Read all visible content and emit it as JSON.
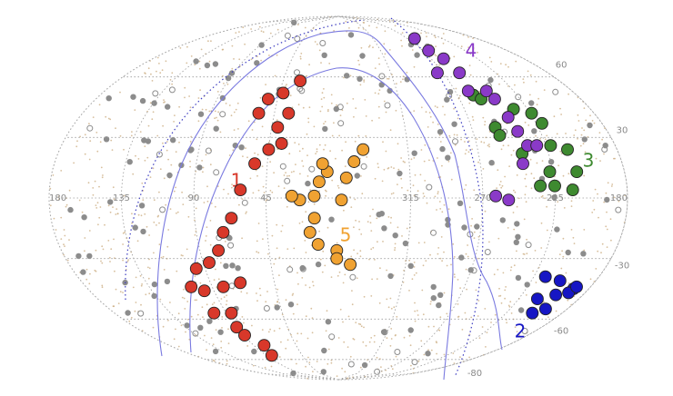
{
  "chart_data": {
    "type": "scatter",
    "lon_ticks": [
      180,
      135,
      90,
      45,
      315,
      270,
      225,
      180
    ],
    "lat_ticks": [
      60,
      30,
      -30,
      -60,
      -80
    ],
    "series": [
      {
        "name": "1",
        "color": "#d8382a",
        "lon": [
          31,
          42,
          52,
          56,
          35,
          41,
          37,
          45,
          53,
          61,
          67,
          73,
          78,
          86,
          96,
          105,
          97,
          82,
          69,
          100,
          86,
          90,
          89,
          79,
          83
        ],
        "lat": [
          58,
          52,
          49,
          42,
          42,
          35,
          27,
          24,
          17,
          4,
          -10,
          -17,
          -26,
          -32,
          -35,
          -44,
          -46,
          -44,
          -42,
          -57,
          -57,
          -64,
          -68,
          -73,
          -78
        ]
      },
      {
        "name": "2",
        "color": "#1616c4",
        "lon": [
          217,
          205,
          191,
          200,
          211,
          197,
          204,
          192,
          190
        ],
        "lat": [
          -39,
          -41,
          -45,
          -48,
          -50,
          -55,
          -57,
          -47,
          -44
        ]
      },
      {
        "name": "3",
        "color": "#3e8a30",
        "lon": [
          258,
          254,
          235,
          224,
          221,
          254,
          253,
          222,
          212,
          242,
          227,
          210,
          225,
          214,
          234
        ],
        "lat": [
          51,
          49,
          44,
          42,
          37,
          35,
          31,
          26,
          24,
          22,
          13,
          13,
          6,
          4,
          6
        ]
      },
      {
        "name": "4",
        "color": "#8a3ac8",
        "lon": [
          261,
          264,
          258,
          275,
          256,
          260,
          246,
          244,
          242,
          240,
          237,
          243,
          231,
          254,
          262
        ],
        "lat": [
          79,
          73,
          69,
          62,
          62,
          53,
          53,
          49,
          40,
          33,
          26,
          17,
          26,
          -1,
          1
        ]
      },
      {
        "name": "5",
        "color": "#f0a232",
        "lon": [
          344,
          350,
          355,
          358,
          7,
          12,
          15,
          24,
          29,
          15,
          18,
          13,
          1,
          352,
          1,
          10
        ],
        "lat": [
          24,
          18,
          10,
          -1,
          13,
          8,
          1,
          -1,
          1,
          -10,
          -17,
          -23,
          -26,
          -33,
          -30,
          17
        ]
      }
    ]
  }
}
